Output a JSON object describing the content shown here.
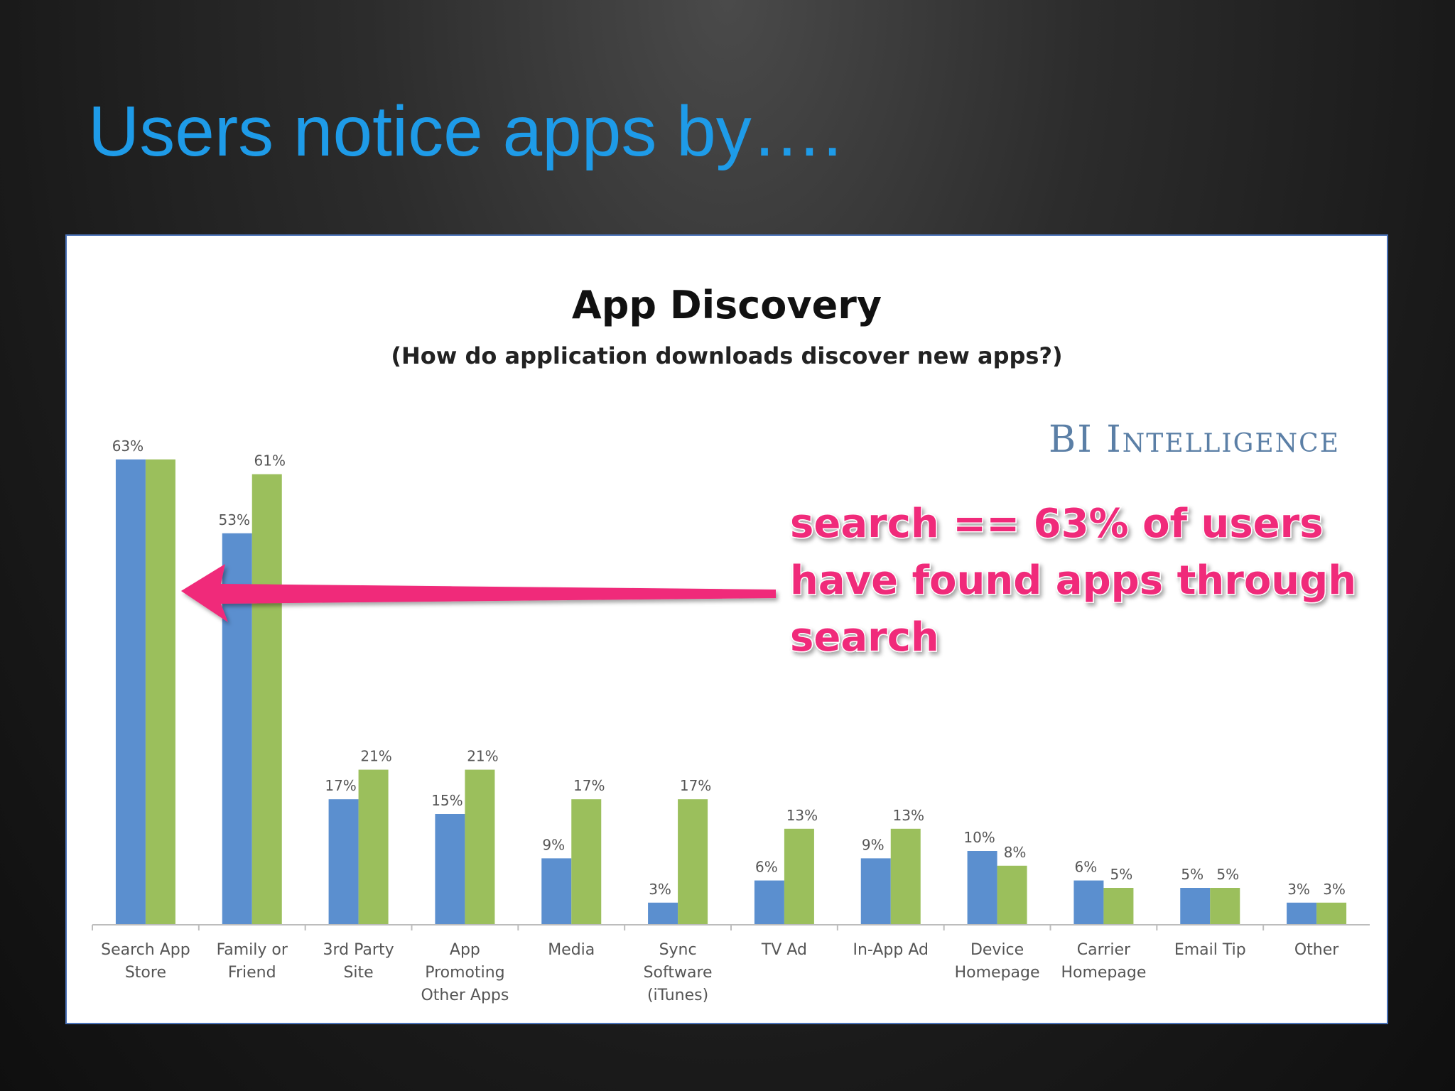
{
  "slide": {
    "title": "Users notice apps by…."
  },
  "brand": {
    "logo_text": "BI Intelligence",
    "color": "#5b7fa6"
  },
  "callout": {
    "lines": [
      "search == 63% of users",
      "have found apps through",
      "search"
    ],
    "color": "#f0297a"
  },
  "colors": {
    "series_1": "#5b8fcf",
    "series_2": "#9bbf5c",
    "title_accent": "#1e9be8"
  },
  "chart_data": {
    "type": "bar",
    "title": "App Discovery",
    "subtitle": "(How do application downloads discover new apps?)",
    "ylim": [
      0,
      70
    ],
    "grid": false,
    "categories": [
      [
        "Search App",
        "Store"
      ],
      [
        "Family or",
        "Friend"
      ],
      [
        "3rd Party",
        "Site"
      ],
      [
        "App",
        "Promoting",
        "Other Apps"
      ],
      [
        "Media"
      ],
      [
        "Sync",
        "Software",
        "(iTunes)"
      ],
      [
        "TV Ad"
      ],
      [
        "In-App Ad"
      ],
      [
        "Device",
        "Homepage"
      ],
      [
        "Carrier",
        "Homepage"
      ],
      [
        "Email Tip"
      ],
      [
        "Other"
      ]
    ],
    "series": [
      {
        "values": [
          63,
          53,
          17,
          15,
          9,
          3,
          6,
          9,
          10,
          6,
          5,
          3
        ]
      },
      {
        "values": [
          63,
          61,
          21,
          21,
          17,
          17,
          13,
          13,
          8,
          5,
          5,
          3
        ]
      }
    ],
    "value_labels": [
      [
        "63%",
        "53%",
        "17%",
        "15%",
        "9%",
        "3%",
        "6%",
        "9%",
        "10%",
        "6%",
        "5%",
        "3%"
      ],
      [
        "",
        "61%",
        "21%",
        "21%",
        "17%",
        "17%",
        "13%",
        "13%",
        "8%",
        "5%",
        "5%",
        "3%"
      ]
    ]
  }
}
